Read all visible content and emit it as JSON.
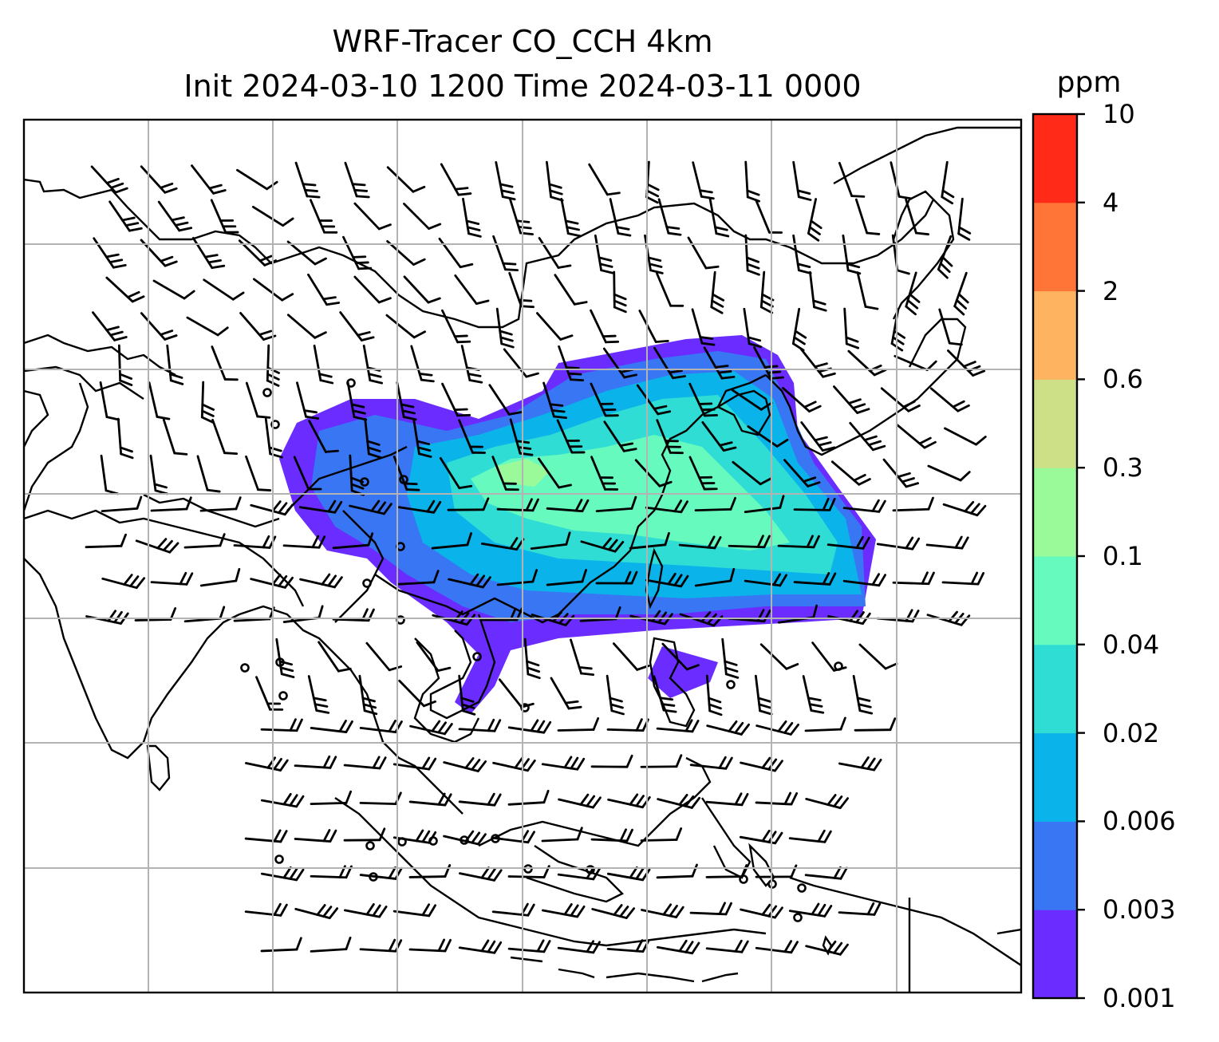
{
  "title": {
    "line1": "WRF-Tracer CO_CCH 4km",
    "line2": "Init 2024-03-10 1200 Time 2024-03-11 0000"
  },
  "colorbar": {
    "unit": "ppm",
    "levels": [
      "0.001",
      "0.003",
      "0.006",
      "0.02",
      "0.04",
      "0.1",
      "0.3",
      "0.6",
      "2",
      "4",
      "10"
    ],
    "colors": [
      "#6a2cff",
      "#3876f4",
      "#0ab3ea",
      "#2fddd5",
      "#66fabf",
      "#9afa9a",
      "#cde088",
      "#feb361",
      "#ff7538",
      "#ff2a17"
    ]
  },
  "map": {
    "gridlines": true,
    "coastline_color": "#000000",
    "barb_color": "#000000"
  }
}
